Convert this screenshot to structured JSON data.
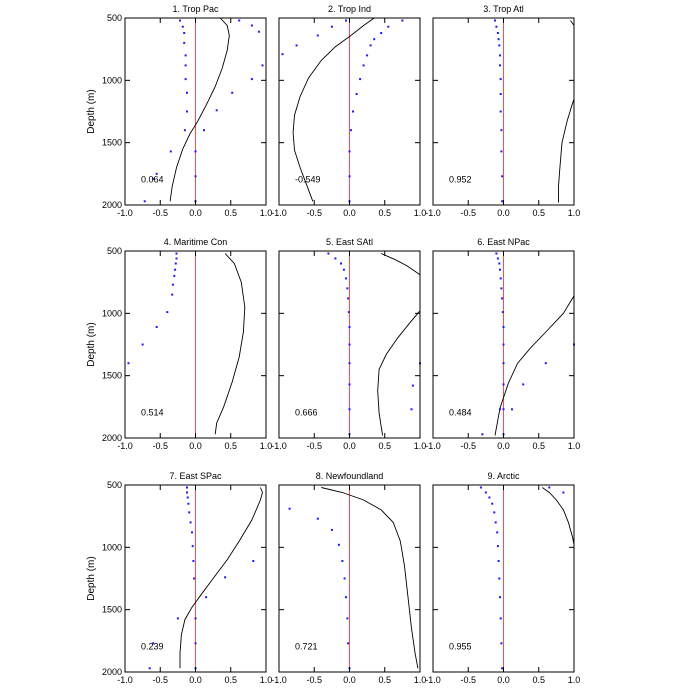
{
  "chart_data": {
    "type": "line",
    "layout": "3x3 grid of panels sharing y range",
    "ylabel": "Depth (m)",
    "xlim": [
      -1.0,
      1.0
    ],
    "ylim": [
      500,
      2000
    ],
    "y_inverted": true,
    "x_ticks": [
      -1.0,
      -0.5,
      0.0,
      0.5,
      1.0
    ],
    "x_tick_labels": [
      "-1.0",
      "-0.5",
      "0.0",
      "0.5",
      "1.0"
    ],
    "y_ticks": [
      500,
      1000,
      1500,
      2000
    ],
    "y_tick_labels": [
      "500",
      "1000",
      "1500",
      "2000"
    ],
    "colors": {
      "zero_line": "#ff4d4d",
      "points": "#1a1aff",
      "curve": "#000000"
    },
    "panels": [
      {
        "title": "1. Trop Pac",
        "annotation": "0.064",
        "curve": [
          [
            0.35,
            500
          ],
          [
            0.45,
            560
          ],
          [
            0.48,
            640
          ],
          [
            0.45,
            760
          ],
          [
            0.38,
            900
          ],
          [
            0.28,
            1050
          ],
          [
            0.15,
            1200
          ],
          [
            0.03,
            1330
          ],
          [
            -0.08,
            1430
          ],
          [
            -0.18,
            1550
          ],
          [
            -0.27,
            1700
          ],
          [
            -0.33,
            1850
          ],
          [
            -0.36,
            1970
          ]
        ],
        "points": [
          [
            -0.22,
            520
          ],
          [
            -0.18,
            570
          ],
          [
            -0.16,
            620
          ],
          [
            -0.16,
            700
          ],
          [
            -0.14,
            800
          ],
          [
            -0.14,
            880
          ],
          [
            -0.14,
            990
          ],
          [
            -0.12,
            1100
          ],
          [
            -0.12,
            1250
          ],
          [
            -0.15,
            1400
          ],
          [
            -0.35,
            1570
          ],
          [
            -0.55,
            1750
          ],
          [
            -0.6,
            1790
          ],
          [
            -0.72,
            1970
          ],
          [
            0.62,
            520
          ],
          [
            0.8,
            560
          ],
          [
            0.9,
            610
          ],
          [
            0.95,
            880
          ],
          [
            0.8,
            990
          ],
          [
            0.52,
            1100
          ],
          [
            0.3,
            1240
          ],
          [
            0.12,
            1400
          ],
          [
            0.0,
            1570
          ],
          [
            0.0,
            1770
          ],
          [
            0.0,
            1970
          ]
        ]
      },
      {
        "title": "2. Trop Ind",
        "annotation": "-0.549",
        "curve": [
          [
            0.35,
            500
          ],
          [
            0.2,
            560
          ],
          [
            0.02,
            640
          ],
          [
            -0.2,
            730
          ],
          [
            -0.4,
            840
          ],
          [
            -0.58,
            980
          ],
          [
            -0.7,
            1130
          ],
          [
            -0.78,
            1280
          ],
          [
            -0.8,
            1420
          ],
          [
            -0.78,
            1560
          ],
          [
            -0.7,
            1700
          ],
          [
            -0.6,
            1850
          ],
          [
            -0.52,
            1970
          ]
        ],
        "points": [
          [
            0.75,
            520
          ],
          [
            0.55,
            570
          ],
          [
            0.45,
            620
          ],
          [
            0.35,
            670
          ],
          [
            0.3,
            720
          ],
          [
            0.25,
            800
          ],
          [
            0.2,
            880
          ],
          [
            0.15,
            990
          ],
          [
            0.1,
            1110
          ],
          [
            0.05,
            1250
          ],
          [
            0.02,
            1400
          ],
          [
            0.0,
            1570
          ],
          [
            0.0,
            1770
          ],
          [
            0.0,
            1970
          ],
          [
            -0.05,
            520
          ],
          [
            -0.25,
            570
          ],
          [
            -0.45,
            640
          ],
          [
            -0.75,
            720
          ],
          [
            -0.95,
            790
          ]
        ]
      },
      {
        "title": "3. Trop Atl",
        "annotation": "0.952",
        "curve": [
          [
            0.95,
            520
          ],
          [
            1.0,
            560
          ],
          [
            1.0,
            1150
          ],
          [
            0.97,
            1200
          ],
          [
            0.9,
            1330
          ],
          [
            0.83,
            1500
          ],
          [
            0.8,
            1700
          ],
          [
            0.78,
            1850
          ],
          [
            0.78,
            1980
          ]
        ],
        "points": [
          [
            -0.12,
            520
          ],
          [
            -0.1,
            570
          ],
          [
            -0.08,
            620
          ],
          [
            -0.07,
            670
          ],
          [
            -0.06,
            720
          ],
          [
            -0.05,
            800
          ],
          [
            -0.05,
            880
          ],
          [
            -0.04,
            990
          ],
          [
            -0.04,
            1110
          ],
          [
            -0.04,
            1250
          ],
          [
            -0.03,
            1400
          ],
          [
            -0.03,
            1570
          ],
          [
            -0.02,
            1770
          ],
          [
            -0.02,
            1970
          ]
        ]
      },
      {
        "title": "4. Maritime Con",
        "annotation": "0.514",
        "curve": [
          [
            0.42,
            520
          ],
          [
            0.55,
            600
          ],
          [
            0.65,
            750
          ],
          [
            0.7,
            950
          ],
          [
            0.68,
            1150
          ],
          [
            0.62,
            1350
          ],
          [
            0.52,
            1550
          ],
          [
            0.4,
            1750
          ],
          [
            0.3,
            1880
          ],
          [
            0.28,
            1970
          ]
        ],
        "points": [
          [
            -0.27,
            520
          ],
          [
            -0.27,
            560
          ],
          [
            -0.28,
            600
          ],
          [
            -0.29,
            650
          ],
          [
            -0.3,
            700
          ],
          [
            -0.32,
            770
          ],
          [
            -0.33,
            850
          ],
          [
            -0.4,
            990
          ],
          [
            -0.55,
            1110
          ],
          [
            -0.75,
            1250
          ],
          [
            -0.95,
            1400
          ]
        ]
      },
      {
        "title": "5. East SAtl",
        "annotation": "0.666",
        "curve": [
          [
            0.45,
            520
          ],
          [
            0.65,
            570
          ],
          [
            0.82,
            620
          ],
          [
            1.0,
            690
          ],
          [
            1.0,
            980
          ],
          [
            0.85,
            1080
          ],
          [
            0.68,
            1200
          ],
          [
            0.52,
            1330
          ],
          [
            0.42,
            1450
          ],
          [
            0.4,
            1620
          ],
          [
            0.42,
            1800
          ],
          [
            0.47,
            1980
          ]
        ],
        "points": [
          [
            -0.3,
            520
          ],
          [
            -0.2,
            560
          ],
          [
            -0.12,
            600
          ],
          [
            -0.08,
            650
          ],
          [
            -0.05,
            720
          ],
          [
            -0.03,
            800
          ],
          [
            -0.02,
            880
          ],
          [
            -0.01,
            990
          ],
          [
            0.0,
            1110
          ],
          [
            0.0,
            1250
          ],
          [
            0.0,
            1400
          ],
          [
            0.0,
            1570
          ],
          [
            0.0,
            1770
          ],
          [
            0.0,
            1970
          ],
          [
            1.0,
            1400
          ],
          [
            0.9,
            1580
          ],
          [
            0.88,
            1770
          ]
        ]
      },
      {
        "title": "6. East NPac",
        "annotation": "0.484",
        "curve": [
          [
            1.0,
            860
          ],
          [
            0.85,
            1000
          ],
          [
            0.6,
            1150
          ],
          [
            0.38,
            1280
          ],
          [
            0.2,
            1400
          ],
          [
            0.07,
            1560
          ],
          [
            -0.05,
            1760
          ],
          [
            -0.12,
            1980
          ]
        ],
        "points": [
          [
            -0.1,
            520
          ],
          [
            -0.08,
            560
          ],
          [
            -0.06,
            600
          ],
          [
            -0.05,
            650
          ],
          [
            -0.04,
            720
          ],
          [
            -0.03,
            800
          ],
          [
            -0.02,
            880
          ],
          [
            -0.01,
            990
          ],
          [
            0.0,
            1110
          ],
          [
            0.0,
            1250
          ],
          [
            0.0,
            1400
          ],
          [
            0.0,
            1570
          ],
          [
            0.0,
            1770
          ],
          [
            0.0,
            1970
          ],
          [
            1.0,
            1250
          ],
          [
            0.6,
            1400
          ],
          [
            0.28,
            1570
          ],
          [
            0.12,
            1770
          ],
          [
            -0.05,
            1770
          ],
          [
            -0.3,
            1970
          ]
        ]
      },
      {
        "title": "7. East SPac",
        "annotation": "0.239",
        "curve": [
          [
            0.92,
            520
          ],
          [
            0.95,
            560
          ],
          [
            0.92,
            620
          ],
          [
            0.8,
            780
          ],
          [
            0.62,
            950
          ],
          [
            0.45,
            1100
          ],
          [
            0.25,
            1250
          ],
          [
            0.08,
            1380
          ],
          [
            -0.05,
            1480
          ],
          [
            -0.15,
            1580
          ],
          [
            -0.2,
            1700
          ],
          [
            -0.22,
            1850
          ],
          [
            -0.22,
            1970
          ]
        ],
        "points": [
          [
            -0.12,
            520
          ],
          [
            -0.12,
            560
          ],
          [
            -0.11,
            600
          ],
          [
            -0.1,
            650
          ],
          [
            -0.09,
            720
          ],
          [
            -0.07,
            800
          ],
          [
            -0.05,
            880
          ],
          [
            -0.04,
            990
          ],
          [
            -0.03,
            1110
          ],
          [
            -0.02,
            1250
          ],
          [
            0.15,
            1400
          ],
          [
            0.0,
            1570
          ],
          [
            0.0,
            1770
          ],
          [
            0.0,
            1970
          ],
          [
            0.82,
            1110
          ],
          [
            0.42,
            1240
          ],
          [
            -0.25,
            1570
          ],
          [
            -0.6,
            1770
          ],
          [
            -0.65,
            1970
          ]
        ]
      },
      {
        "title": "8. Newfoundland",
        "annotation": "0.721",
        "curve": [
          [
            -0.4,
            520
          ],
          [
            -0.1,
            560
          ],
          [
            0.2,
            620
          ],
          [
            0.45,
            700
          ],
          [
            0.62,
            800
          ],
          [
            0.72,
            950
          ],
          [
            0.78,
            1150
          ],
          [
            0.83,
            1400
          ],
          [
            0.88,
            1650
          ],
          [
            0.93,
            1850
          ],
          [
            0.97,
            1970
          ]
        ],
        "points": [
          [
            -0.85,
            690
          ],
          [
            -0.45,
            770
          ],
          [
            -0.25,
            860
          ],
          [
            -0.15,
            980
          ],
          [
            -0.1,
            1110
          ],
          [
            -0.07,
            1250
          ],
          [
            -0.05,
            1400
          ],
          [
            -0.03,
            1570
          ],
          [
            -0.02,
            1770
          ],
          [
            0.0,
            1970
          ]
        ]
      },
      {
        "title": "9. Arctic",
        "annotation": "0.955",
        "curve": [
          [
            0.55,
            520
          ],
          [
            0.65,
            560
          ],
          [
            0.75,
            620
          ],
          [
            0.85,
            700
          ],
          [
            0.92,
            800
          ],
          [
            0.98,
            920
          ],
          [
            1.0,
            980
          ]
        ],
        "points": [
          [
            -0.32,
            520
          ],
          [
            -0.25,
            560
          ],
          [
            -0.2,
            600
          ],
          [
            -0.16,
            650
          ],
          [
            -0.13,
            720
          ],
          [
            -0.11,
            800
          ],
          [
            -0.09,
            880
          ],
          [
            -0.08,
            990
          ],
          [
            -0.07,
            1110
          ],
          [
            -0.06,
            1250
          ],
          [
            -0.05,
            1400
          ],
          [
            -0.04,
            1570
          ],
          [
            -0.03,
            1770
          ],
          [
            -0.02,
            1970
          ],
          [
            0.65,
            520
          ],
          [
            0.85,
            560
          ]
        ]
      }
    ]
  }
}
